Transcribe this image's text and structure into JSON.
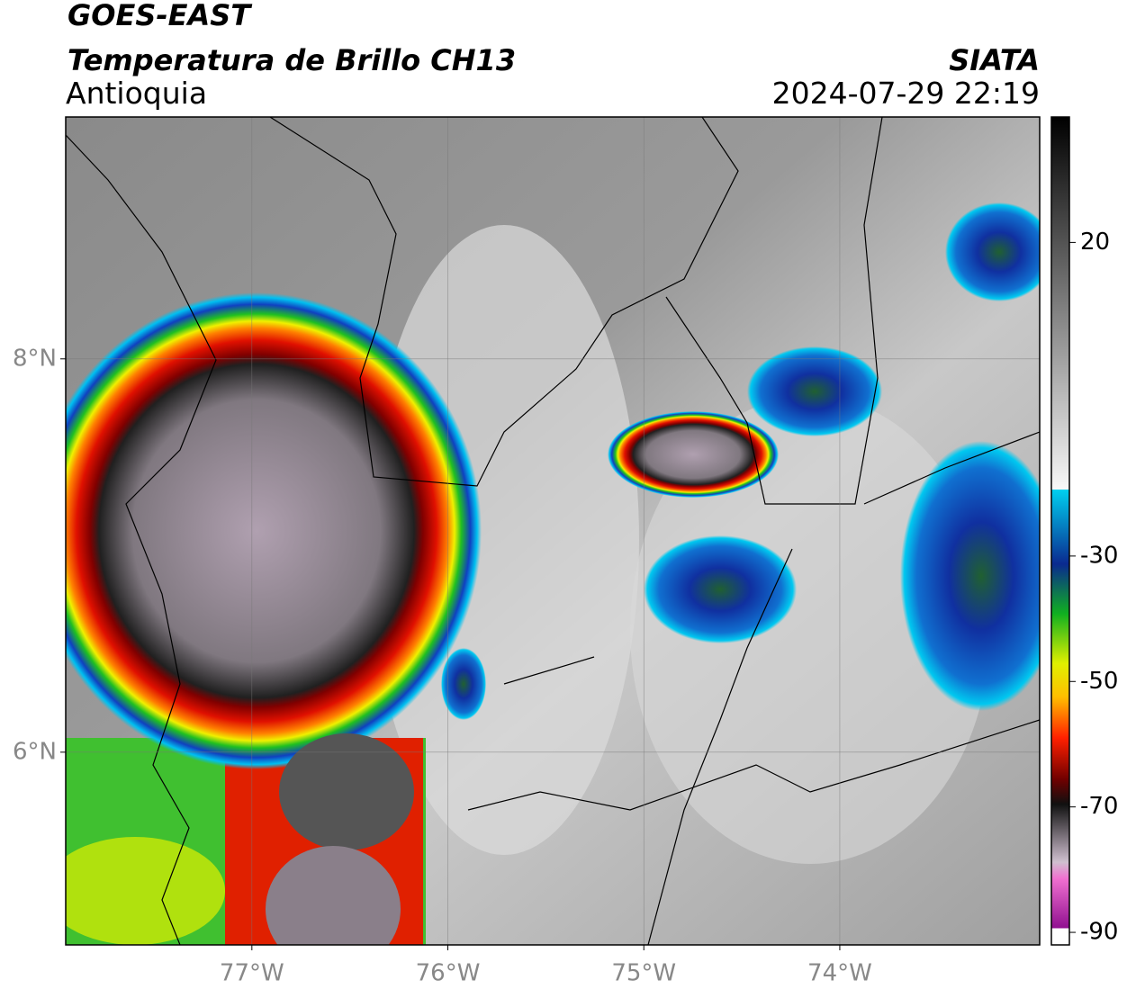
{
  "header": {
    "title": "GOES-EAST",
    "subtitle": "Temperatura de Brillo CH13",
    "region": "Antioquia",
    "source": "SIATA",
    "datetime": "2024-07-29 22:19"
  },
  "map": {
    "xlim": [
      -77.95,
      -72.98
    ],
    "ylim": [
      5.02,
      9.23
    ],
    "xticks": [
      {
        "value": -77,
        "label": "77°W"
      },
      {
        "value": -76,
        "label": "76°W"
      },
      {
        "value": -75,
        "label": "75°W"
      },
      {
        "value": -74,
        "label": "74°W"
      }
    ],
    "yticks": [
      {
        "value": 8,
        "label": "8°N"
      },
      {
        "value": 6,
        "label": "6°N"
      }
    ]
  },
  "colorbar": {
    "lim": [
      -92,
      40
    ],
    "ticks": [
      20,
      -30,
      -50,
      -70,
      -90
    ]
  }
}
